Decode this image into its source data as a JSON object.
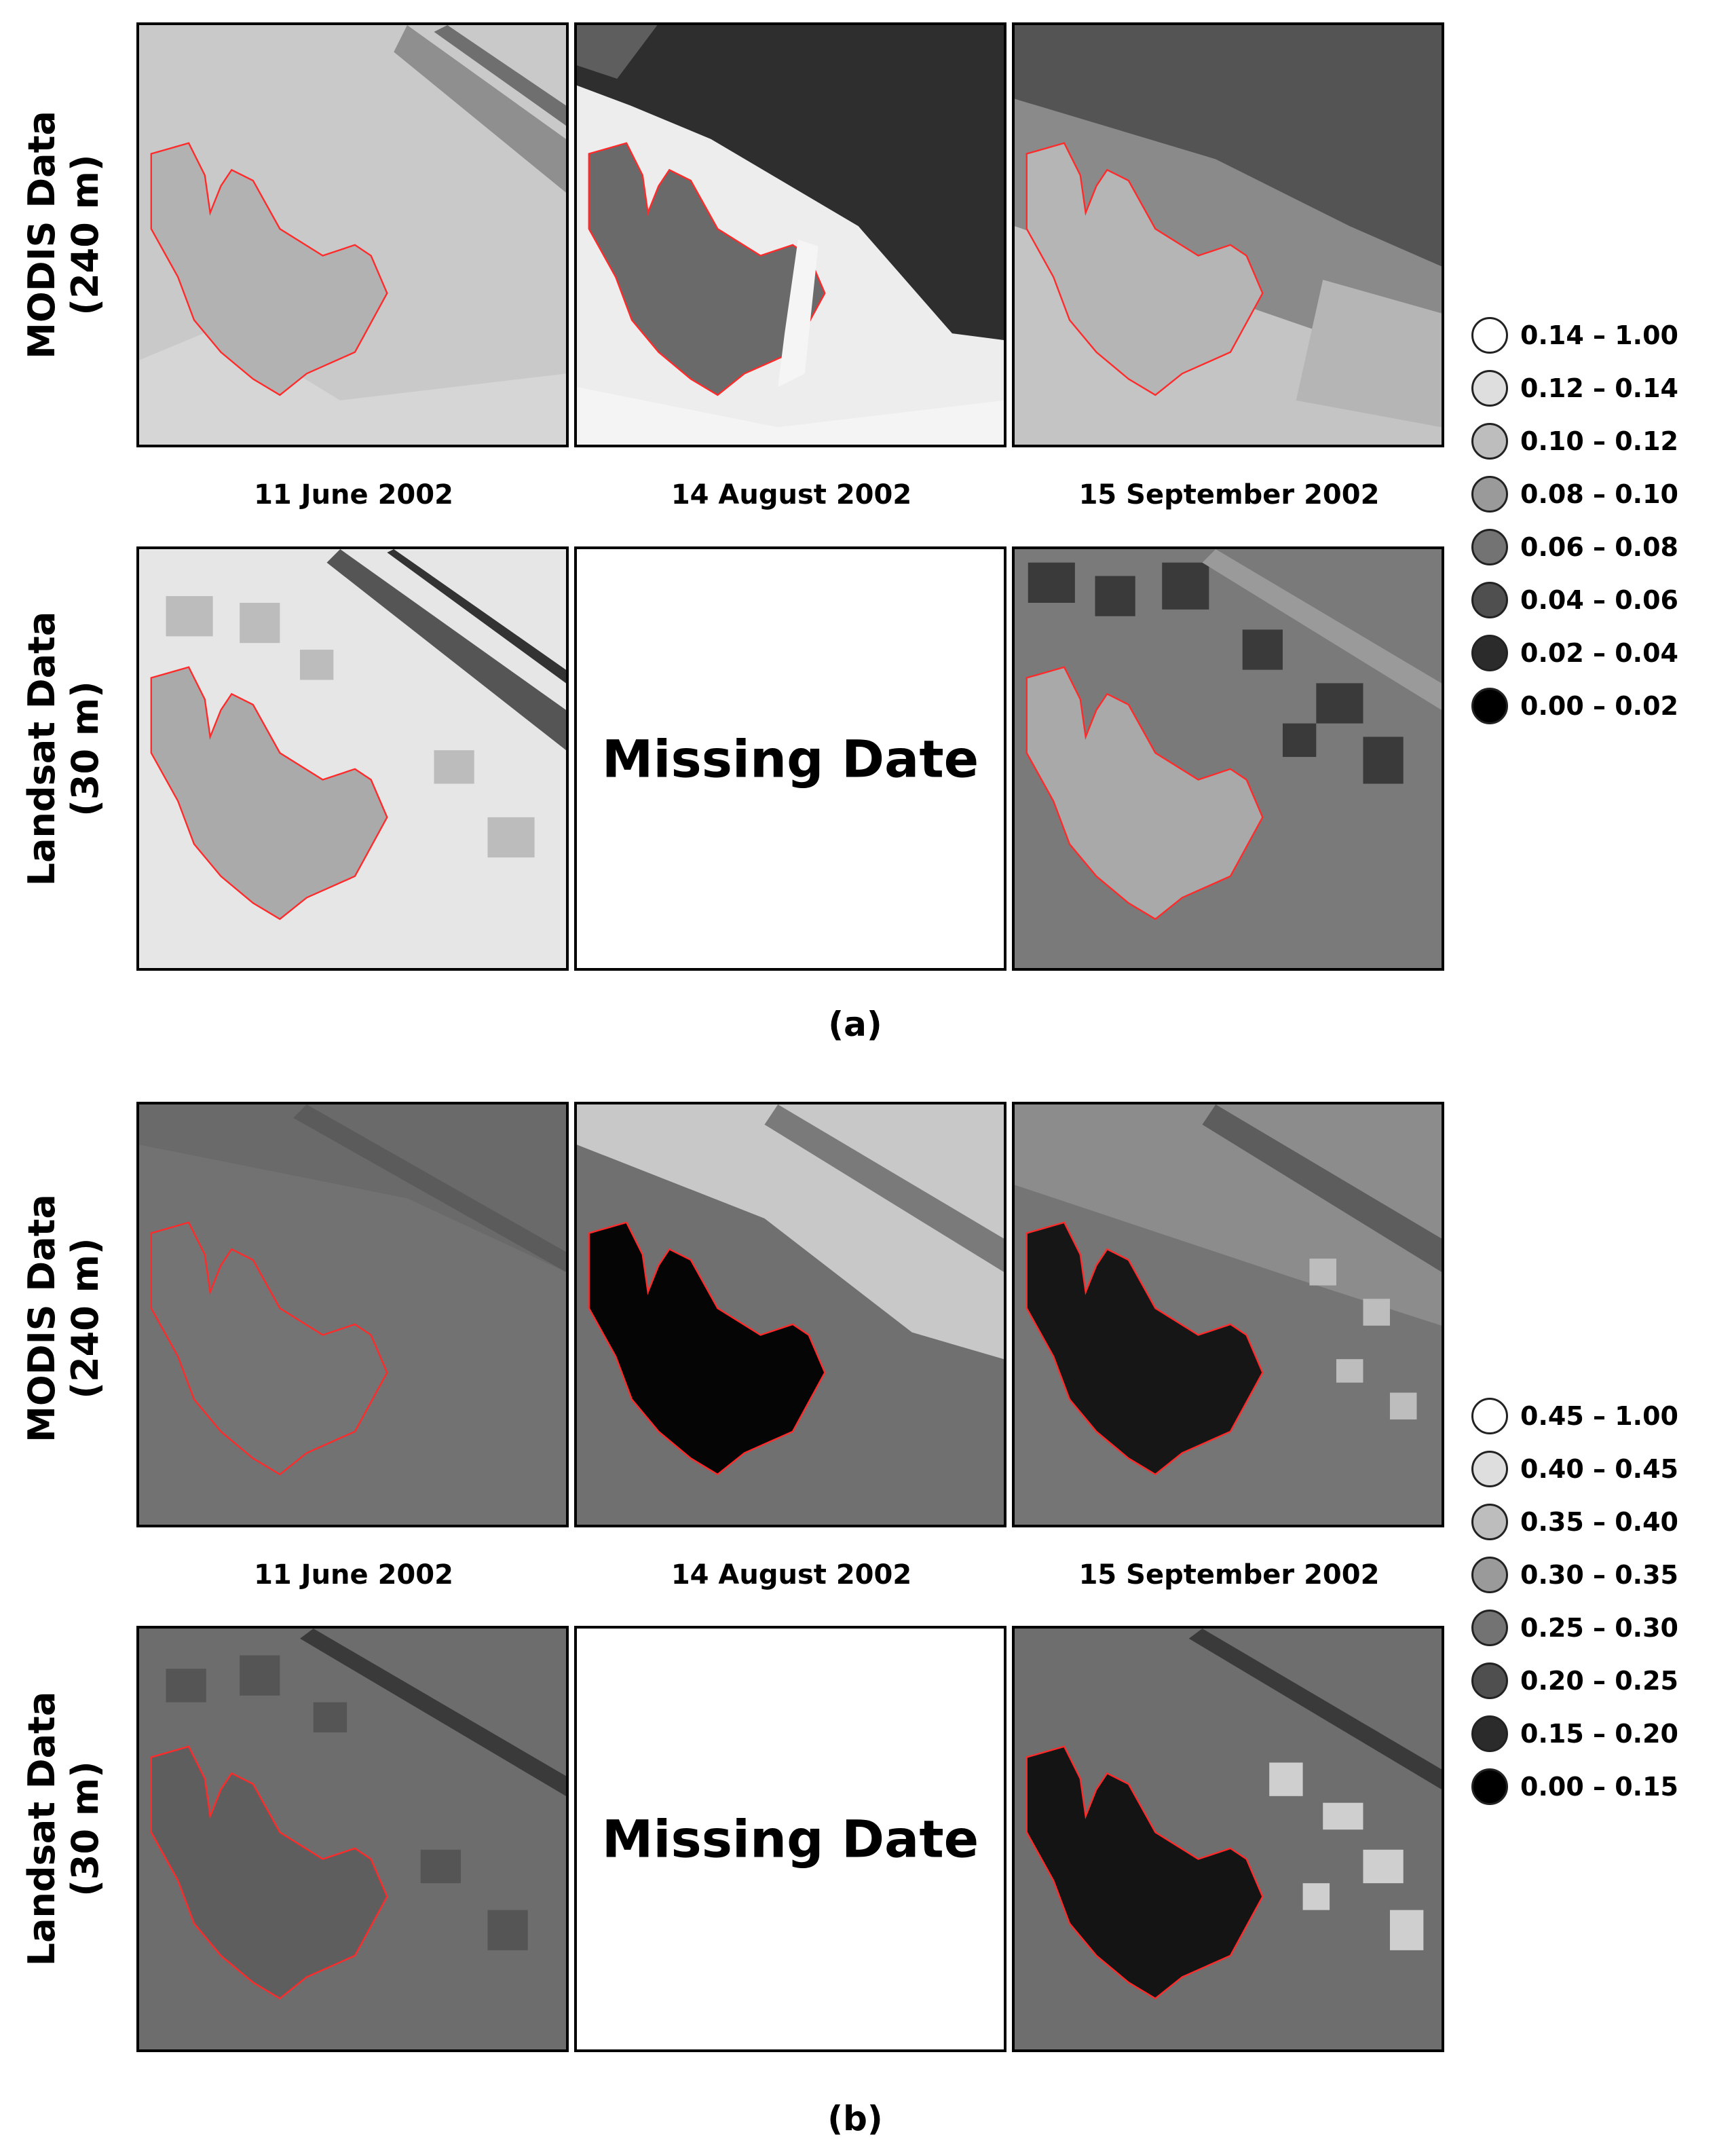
{
  "figure": {
    "panel_a_label": "(a)",
    "panel_b_label": "(b)"
  },
  "rows": {
    "modis": [
      "MODIS Data",
      "(240 m)"
    ],
    "landsat": [
      "Landsat Data",
      "(30 m)"
    ]
  },
  "dates": [
    "11 June 2002",
    "14 August 2002",
    "15 September 2002"
  ],
  "missing_text": "Missing Date",
  "legend_a": {
    "items": [
      {
        "label": "0.14 – 1.00",
        "color": "#ffffff"
      },
      {
        "label": "0.12 – 0.14",
        "color": "#dedede"
      },
      {
        "label": "0.10 – 0.12",
        "color": "#bdbdbd"
      },
      {
        "label": "0.08 – 0.10",
        "color": "#9a9a9a"
      },
      {
        "label": "0.06 – 0.08",
        "color": "#737373"
      },
      {
        "label": "0.04 – 0.06",
        "color": "#4f4f4f"
      },
      {
        "label": "0.02 – 0.04",
        "color": "#2b2b2b"
      },
      {
        "label": "0.00 – 0.02",
        "color": "#000000"
      }
    ]
  },
  "legend_b": {
    "items": [
      {
        "label": "0.45 – 1.00",
        "color": "#ffffff"
      },
      {
        "label": "0.40 – 0.45",
        "color": "#dedede"
      },
      {
        "label": "0.35 – 0.40",
        "color": "#bdbdbd"
      },
      {
        "label": "0.30 – 0.35",
        "color": "#9a9a9a"
      },
      {
        "label": "0.25 – 0.30",
        "color": "#737373"
      },
      {
        "label": "0.20 – 0.25",
        "color": "#4f4f4f"
      },
      {
        "label": "0.15 – 0.20",
        "color": "#2b2b2b"
      },
      {
        "label": "0.00 – 0.15",
        "color": "#000000"
      }
    ]
  },
  "colors": {
    "boundary": "#ff2a2a"
  }
}
